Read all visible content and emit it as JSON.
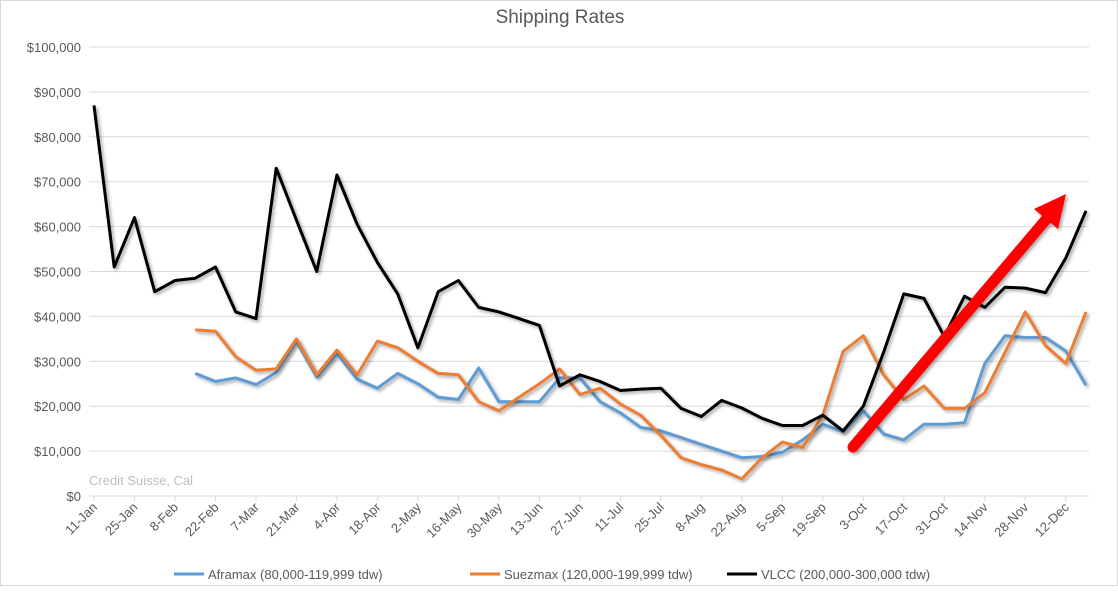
{
  "chart_data": {
    "type": "line",
    "title": "Shipping Rates",
    "watermark": "Credit Suisse, Cal",
    "ylim": [
      0,
      100000
    ],
    "yticks": [
      "$0",
      "$10,000",
      "$20,000",
      "$30,000",
      "$40,000",
      "$50,000",
      "$60,000",
      "$70,000",
      "$80,000",
      "$90,000",
      "$100,000"
    ],
    "xtick_labels": [
      "11-Jan",
      "25-Jan",
      "8-Feb",
      "22-Feb",
      "7-Mar",
      "21-Mar",
      "4-Apr",
      "18-Apr",
      "2-May",
      "16-May",
      "30-May",
      "13-Jun",
      "27-Jun",
      "11-Jul",
      "25-Jul",
      "8-Aug",
      "22-Aug",
      "5-Sep",
      "19-Sep",
      "3-Oct",
      "17-Oct",
      "31-Oct",
      "14-Nov",
      "28-Nov",
      "12-Dec"
    ],
    "x_note_weekly_points": 50,
    "grid": true,
    "legend": "bottom",
    "series": [
      {
        "name": "Aframax (80,000-119,999 tdw)",
        "color": "#5b9bd5",
        "values": [
          null,
          null,
          null,
          null,
          null,
          27300,
          25500,
          26300,
          24800,
          27500,
          34500,
          26500,
          31800,
          26000,
          24000,
          27300,
          25000,
          22000,
          21500,
          28500,
          21000,
          21000,
          21000,
          26300,
          26300,
          21000,
          18500,
          15300,
          14500,
          13000,
          11500,
          10000,
          8500,
          8800,
          9700,
          12500,
          16000,
          14300,
          19000,
          13800,
          12500,
          16000,
          16000,
          16300,
          29500,
          35700,
          35300,
          35300,
          32300,
          24700
        ]
      },
      {
        "name": "Suezmax (120,000-199,999 tdw)",
        "color": "#ed7d31",
        "values": [
          null,
          null,
          null,
          null,
          null,
          37000,
          36700,
          31000,
          28000,
          28300,
          35000,
          27000,
          32500,
          27000,
          34500,
          33000,
          30000,
          27300,
          27000,
          21000,
          19000,
          22000,
          25000,
          28300,
          22600,
          24000,
          20500,
          18000,
          13500,
          8500,
          7000,
          5800,
          3800,
          8500,
          12000,
          10800,
          18000,
          32200,
          35700,
          27000,
          21500,
          24500,
          19500,
          19500,
          23000,
          32000,
          41000,
          33500,
          29500,
          41000
        ]
      },
      {
        "name": "VLCC (200,000-300,000 tdw)",
        "color": "#000000",
        "values": [
          87000,
          51000,
          62000,
          45500,
          48000,
          48500,
          51000,
          41000,
          39500,
          73000,
          61500,
          50000,
          71500,
          60500,
          52000,
          45000,
          33000,
          45500,
          48000,
          42000,
          41000,
          39500,
          38000,
          24500,
          27000,
          25500,
          23500,
          23800,
          24000,
          19500,
          17700,
          21300,
          19600,
          17300,
          15700,
          15700,
          18000,
          14500,
          20000,
          32000,
          45000,
          44000,
          35500,
          44500,
          42000,
          46500,
          46300,
          45300,
          53000,
          63500
        ]
      }
    ],
    "annotation": {
      "type": "arrow",
      "color": "#ff0000",
      "meaning": "upward trend"
    }
  }
}
